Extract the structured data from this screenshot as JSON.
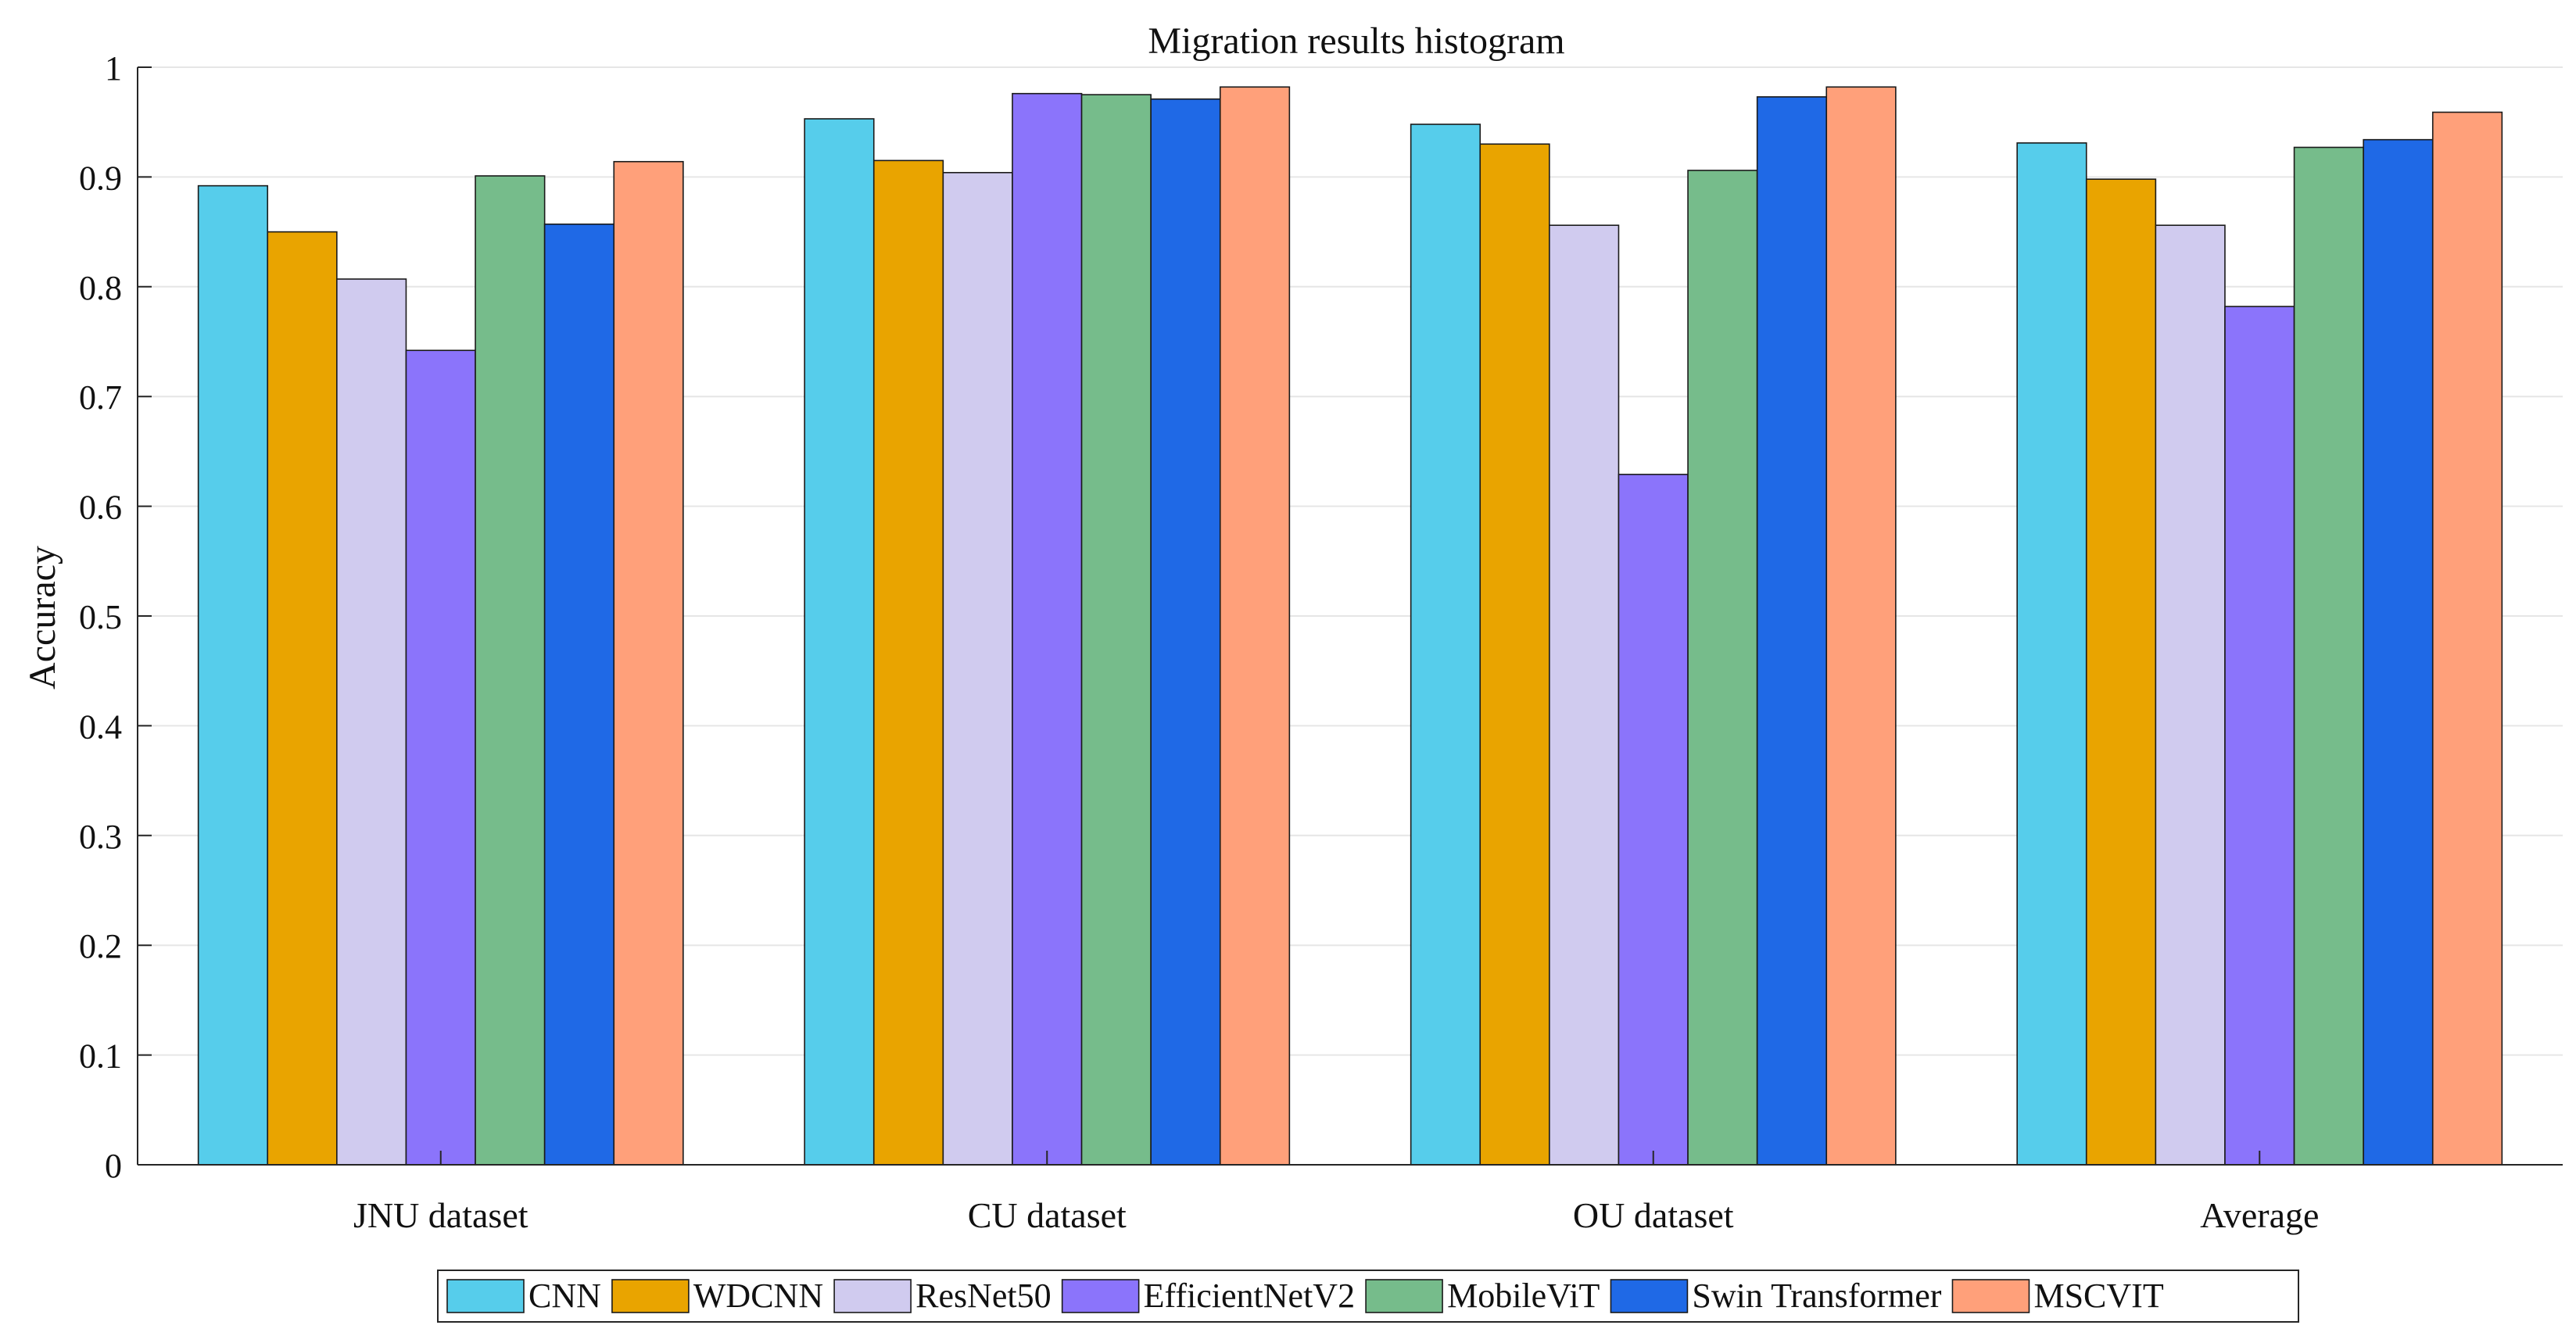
{
  "chart_data": {
    "type": "bar",
    "title": "Migration results histogram",
    "xlabel": "",
    "ylabel": "Accuracy",
    "ylim": [
      0,
      1
    ],
    "yticks": [
      "0",
      "0.1",
      "0.2",
      "0.3",
      "0.4",
      "0.5",
      "0.6",
      "0.7",
      "0.8",
      "0.9",
      "1"
    ],
    "ytick_values": [
      0,
      0.1,
      0.2,
      0.3,
      0.4,
      0.5,
      0.6,
      0.7,
      0.8,
      0.9,
      1.0
    ],
    "grid": true,
    "legend_position": "bottom",
    "categories": [
      "JNU dataset",
      "CU dataset",
      "OU dataset",
      "Average"
    ],
    "series": [
      {
        "name": "CNN",
        "color": "#56CDEB",
        "values": [
          0.892,
          0.953,
          0.948,
          0.931
        ]
      },
      {
        "name": "WDCNN",
        "color": "#E9A400",
        "values": [
          0.85,
          0.915,
          0.93,
          0.898
        ]
      },
      {
        "name": "ResNet50",
        "color": "#D0CBEF",
        "values": [
          0.807,
          0.904,
          0.856,
          0.856
        ]
      },
      {
        "name": "EfficientNetV2",
        "color": "#8B74FB",
        "values": [
          0.742,
          0.976,
          0.629,
          0.782
        ]
      },
      {
        "name": "MobileViT",
        "color": "#76BC8B",
        "values": [
          0.901,
          0.975,
          0.906,
          0.927
        ]
      },
      {
        "name": "Swin Transformer",
        "color": "#1F69E6",
        "values": [
          0.857,
          0.971,
          0.973,
          0.934
        ]
      },
      {
        "name": "MSCVIT",
        "color": "#FFA07A",
        "values": [
          0.914,
          0.982,
          0.982,
          0.959
        ]
      }
    ]
  }
}
